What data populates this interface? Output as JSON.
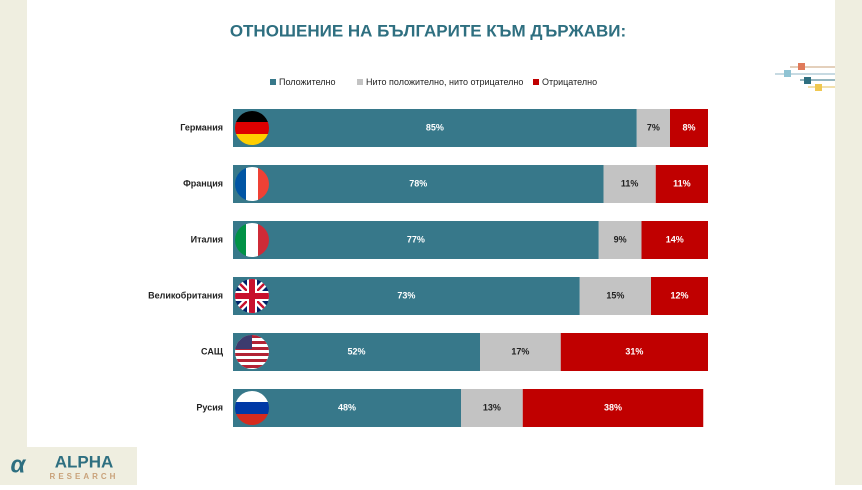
{
  "chart_data": {
    "type": "stacked-bar-horizontal",
    "title": "ОТНОШЕНИЕ НА БЪЛГАРИТЕ КЪМ ДЪРЖАВИ:",
    "categories": [
      "Германия",
      "Франция",
      "Италия",
      "Великобритания",
      "САЩ",
      "Русия"
    ],
    "series": [
      {
        "name": "Положително",
        "color": "#37788a",
        "values": [
          85,
          78,
          77,
          73,
          52,
          48
        ],
        "value_labels": [
          "85%",
          "78%",
          "77%",
          "73%",
          "52%",
          "48%"
        ]
      },
      {
        "name": "Нито положително, нито отрицателно",
        "color": "#c3c3c3",
        "values": [
          7,
          11,
          9,
          15,
          17,
          13
        ],
        "value_labels": [
          "7%",
          "11%",
          "9%",
          "15%",
          "17%",
          "13%"
        ]
      },
      {
        "name": "Отрицателно",
        "color": "#c00000",
        "values": [
          8,
          11,
          14,
          12,
          31,
          38
        ],
        "value_labels": [
          "8%",
          "11%",
          "14%",
          "12%",
          "31%",
          "38%"
        ]
      }
    ],
    "xlim": [
      0,
      100
    ],
    "legend": "top"
  },
  "logo": {
    "name": "ALPHA",
    "sub": "RESEARCH"
  }
}
